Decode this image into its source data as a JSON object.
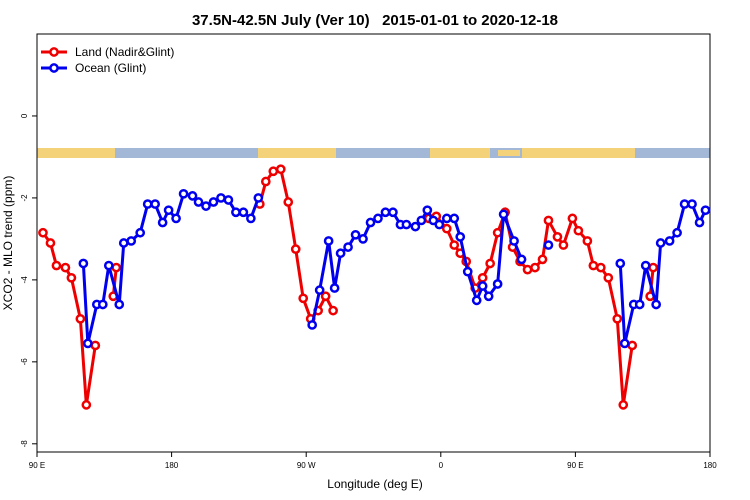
{
  "chart_data": {
    "type": "line",
    "title": "37.5N-42.5N July (Ver 10)   2015-01-01 to 2020-12-18",
    "xlabel": "Longitude (deg E)",
    "ylabel": "XCO2 - MLO trend (ppm)",
    "xlim": [
      90,
      540
    ],
    "xticks": [
      {
        "value": 90,
        "label": "90 E"
      },
      180,
      {
        "value": 270,
        "label": "90 W"
      },
      {
        "value": 360,
        "label": "0"
      },
      {
        "value": 450,
        "label": "90 E"
      },
      {
        "value": 540,
        "label": "180"
      }
    ],
    "ylim": [
      -8.2,
      2
    ],
    "yticks": [
      0,
      -2,
      -4,
      -6,
      -8
    ],
    "legend": "upper left",
    "series": [
      {
        "name": "Land (Nadir&Glint)",
        "color": "#ee0000",
        "x": [
          94,
          99,
          103,
          109,
          113,
          119,
          123,
          129,
          null,
          141,
          143,
          null,
          239,
          243,
          248,
          253,
          258,
          263,
          268,
          273,
          278,
          283,
          288,
          null,
          352,
          357,
          364,
          369,
          373,
          377,
          383,
          388,
          393,
          398,
          403,
          408,
          413,
          418,
          423,
          428,
          432,
          438,
          442,
          448,
          452,
          458,
          462,
          467,
          472,
          478,
          482,
          488,
          null,
          500,
          502
        ],
        "values": [
          -2.85,
          -3.1,
          -3.65,
          -3.7,
          -3.95,
          -4.95,
          -7.05,
          -5.6,
          null,
          -4.4,
          -3.7,
          null,
          -2.15,
          -1.6,
          -1.35,
          -1.3,
          -2.1,
          -3.25,
          -4.45,
          -4.95,
          -4.75,
          -4.4,
          -4.75,
          null,
          -2.5,
          -2.45,
          -2.75,
          -3.15,
          -3.35,
          -3.55,
          -4.2,
          -3.95,
          -3.6,
          -2.85,
          -2.35,
          -3.2,
          -3.55,
          -3.75,
          -3.7,
          -3.5,
          -2.55,
          -2.95,
          -3.15,
          -2.5,
          -2.8,
          -3.05,
          -3.65,
          -3.7,
          -3.95,
          -4.95,
          -7.05,
          -5.6,
          null,
          -4.4,
          -3.7
        ]
      },
      {
        "name": "Ocean (Glint)",
        "color": "#0000ee",
        "x": [
          121,
          124,
          130,
          134,
          138,
          145,
          148,
          153,
          159,
          164,
          169,
          174,
          178,
          183,
          188,
          194,
          198,
          203,
          208,
          213,
          218,
          223,
          228,
          233,
          238,
          null,
          274,
          279,
          285,
          289,
          293,
          298,
          303,
          308,
          313,
          318,
          323,
          328,
          333,
          337,
          343,
          347,
          351,
          355,
          359,
          364,
          369,
          373,
          378,
          384,
          388,
          392,
          398,
          402,
          409,
          414,
          null,
          432,
          null,
          480,
          483,
          489,
          493,
          497,
          504,
          507,
          513,
          518,
          523,
          528,
          533,
          537
        ],
        "values": [
          -3.6,
          -5.55,
          -4.6,
          -4.6,
          -3.65,
          -4.6,
          -3.1,
          -3.05,
          -2.85,
          -2.15,
          -2.15,
          -2.6,
          -2.3,
          -2.5,
          -1.9,
          -1.95,
          -2.1,
          -2.2,
          -2.1,
          -2.0,
          -2.05,
          -2.35,
          -2.35,
          -2.5,
          -2.0,
          null,
          -5.1,
          -4.25,
          -3.05,
          -4.2,
          -3.35,
          -3.2,
          -2.9,
          -3.0,
          -2.6,
          -2.5,
          -2.35,
          -2.35,
          -2.65,
          -2.65,
          -2.7,
          -2.55,
          -2.3,
          -2.55,
          -2.65,
          -2.5,
          -2.5,
          -2.95,
          -3.8,
          -4.5,
          -4.15,
          -4.4,
          -4.1,
          -2.4,
          -3.05,
          -3.5,
          null,
          -3.15,
          null,
          -3.6,
          -5.55,
          -4.6,
          -4.6,
          -3.65,
          -4.6,
          -3.1,
          -3.05,
          -2.85,
          -2.15,
          -2.15,
          -2.6,
          -2.3
        ]
      }
    ]
  }
}
